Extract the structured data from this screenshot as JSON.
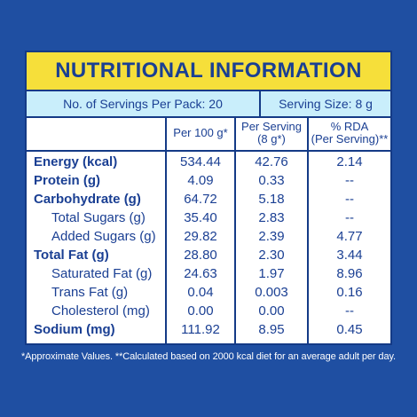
{
  "title": "NUTRITIONAL INFORMATION",
  "servings": {
    "per_pack": "No. of Servings Per Pack: 20",
    "serving_size": "Serving Size: 8 g"
  },
  "headers": {
    "per100": "Per 100 g*",
    "per_serving_line1": "Per Serving",
    "per_serving_line2": "(8 g*)",
    "rda_line1": "% RDA",
    "rda_line2": "(Per Serving)**"
  },
  "rows": [
    {
      "label": "Energy (kcal)",
      "per100": "534.44",
      "serving": "42.76",
      "rda": "2.14"
    },
    {
      "label": "Protein (g)",
      "per100": "4.09",
      "serving": "0.33",
      "rda": "--"
    },
    {
      "label": "Carbohydrate (g)",
      "per100": "64.72",
      "serving": "5.18",
      "rda": "--"
    },
    {
      "label": "Total Sugars (g)",
      "per100": "35.40",
      "serving": "2.83",
      "rda": "--"
    },
    {
      "label": "Added Sugars (g)",
      "per100": "29.82",
      "serving": "2.39",
      "rda": "4.77"
    },
    {
      "label": "Total Fat (g)",
      "per100": "28.80",
      "serving": "2.30",
      "rda": "3.44"
    },
    {
      "label": "Saturated Fat (g)",
      "per100": "24.63",
      "serving": "1.97",
      "rda": "8.96"
    },
    {
      "label": "Trans Fat (g)",
      "per100": "0.04",
      "serving": "0.003",
      "rda": "0.16"
    },
    {
      "label": "Cholesterol (mg)",
      "per100": "0.00",
      "serving": "0.00",
      "rda": "--"
    },
    {
      "label": "Sodium (mg)",
      "per100": "111.92",
      "serving": "8.95",
      "rda": "0.45"
    }
  ],
  "footnote": "*Approximate Values. **Calculated based on 2000 kcal diet for an average adult per day."
}
